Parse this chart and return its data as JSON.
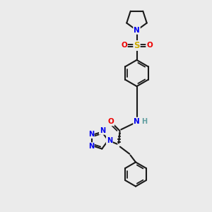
{
  "bg_color": "#ebebeb",
  "bond_color": "#1a1a1a",
  "bond_width": 1.5,
  "atom_colors": {
    "N": "#0000ee",
    "O": "#ee0000",
    "S": "#ccaa00",
    "H": "#5f9ea0",
    "C": "#1a1a1a"
  },
  "font_size": 7.5,
  "fig_size": [
    3.0,
    3.0
  ],
  "dpi": 100,
  "xlim": [
    0,
    10
  ],
  "ylim": [
    0,
    10
  ]
}
